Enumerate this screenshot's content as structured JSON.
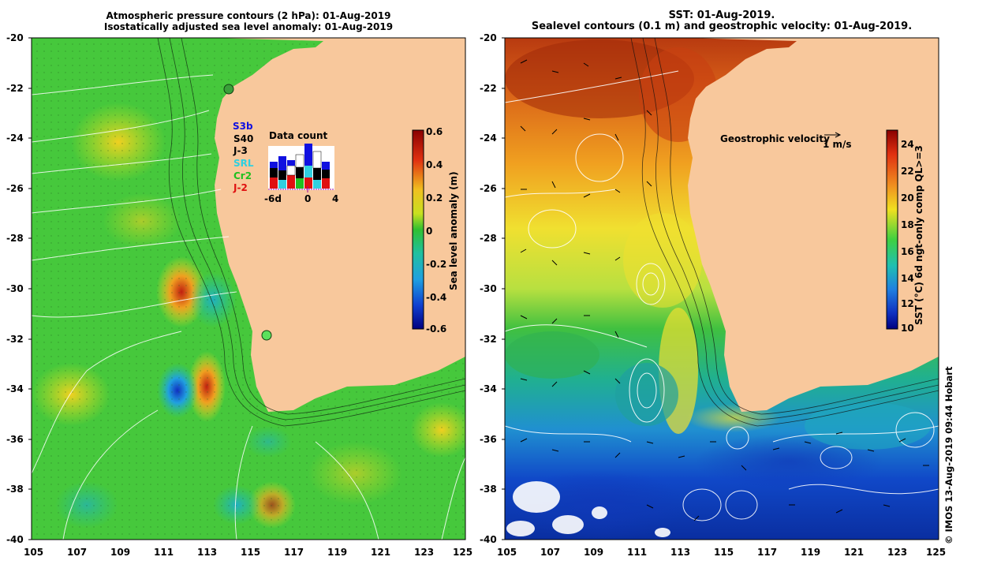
{
  "left_panel": {
    "title_line1": "Atmospheric pressure contours (2 hPa): 01-Aug-2019",
    "title_line2": "Isostatically adjusted sea level anomaly: 01-Aug-2019",
    "colorbar_label": "Sea level anomaly (m)",
    "colorbar_ticks": [
      "0.6",
      "0.4",
      "0.2",
      "0",
      "-0.2",
      "-0.4",
      "-0.6"
    ],
    "satellites": [
      {
        "name": "S3b",
        "color": "#1010e0"
      },
      {
        "name": "S40",
        "color": "#000000"
      },
      {
        "name": "J-3",
        "color": "#000000"
      },
      {
        "name": "SRL",
        "color": "#30d0e0"
      },
      {
        "name": "Cr2",
        "color": "#20c020"
      },
      {
        "name": "J-2",
        "color": "#e01010"
      }
    ],
    "data_count": {
      "title": "Data count",
      "ticks": [
        "-6d",
        "0",
        "4"
      ]
    }
  },
  "right_panel": {
    "title_line1": "SST: 01-Aug-2019.",
    "title_line2": "Sealevel contours (0.1 m) and geostrophic velocity: 01-Aug-2019.",
    "colorbar_label": "SST (°C) 6d ngt-only comp QL>=3",
    "colorbar_ticks": [
      "24",
      "22",
      "20",
      "18",
      "16",
      "14",
      "12",
      "10"
    ],
    "velocity_label": "Geostrophic velocity",
    "velocity_scale": "1 m/s"
  },
  "axes": {
    "lat_ticks": [
      "-20",
      "-22",
      "-24",
      "-26",
      "-28",
      "-30",
      "-32",
      "-34",
      "-36",
      "-38",
      "-40"
    ],
    "lon_ticks": [
      "105",
      "107",
      "109",
      "111",
      "113",
      "115",
      "117",
      "119",
      "121",
      "123",
      "125"
    ]
  },
  "credit": "© IMOS 13-Aug-2019 09:44 Hobart",
  "colors": {
    "land": "#f8c89c",
    "sla_green": "#3cc83c",
    "sst_warm": "#e06010",
    "sst_cool": "#1040c0"
  }
}
